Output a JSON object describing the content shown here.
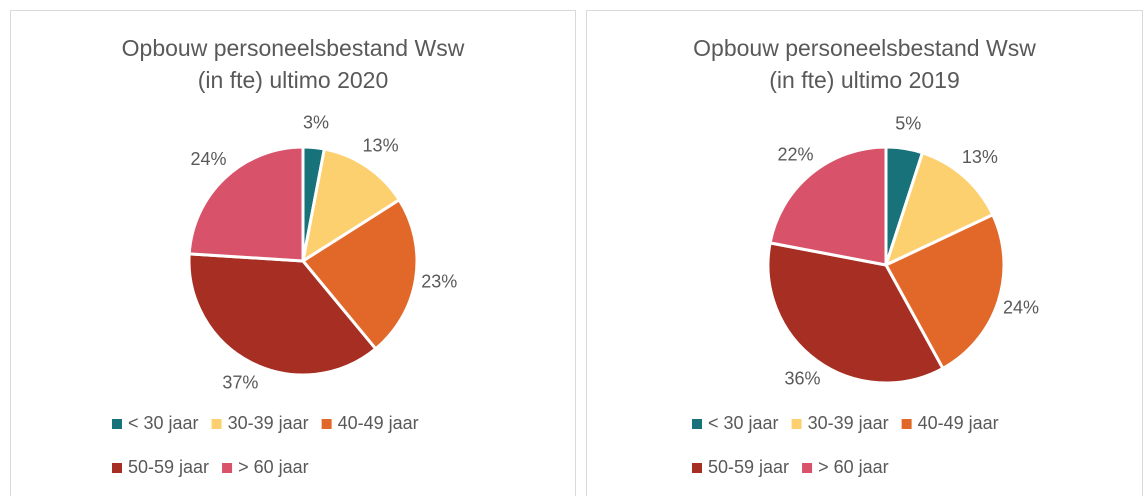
{
  "chart_data": [
    {
      "type": "pie",
      "title": [
        "Opbouw personeelsbestand Wsw",
        "(in fte) ultimo 2020"
      ],
      "categories": [
        "< 30 jaar",
        "30-39 jaar",
        "40-49 jaar",
        "50-59 jaar",
        "> 60 jaar"
      ],
      "values": [
        3,
        13,
        23,
        37,
        24
      ],
      "value_labels": [
        "3%",
        "13%",
        "23%",
        "37%",
        "24%"
      ],
      "colors": [
        "#17727a",
        "#fdd06f",
        "#e2682a",
        "#a72e22",
        "#d8526a"
      ]
    },
    {
      "type": "pie",
      "title": [
        "Opbouw personeelsbestand Wsw",
        "(in fte) ultimo 2019"
      ],
      "categories": [
        "< 30 jaar",
        "30-39 jaar",
        "40-49 jaar",
        "50-59 jaar",
        "> 60 jaar"
      ],
      "values": [
        5,
        13,
        24,
        36,
        22
      ],
      "value_labels": [
        "5%",
        "13%",
        "24%",
        "36%",
        "22%"
      ],
      "colors": [
        "#17727a",
        "#fdd06f",
        "#e2682a",
        "#a72e22",
        "#d8526a"
      ]
    }
  ]
}
